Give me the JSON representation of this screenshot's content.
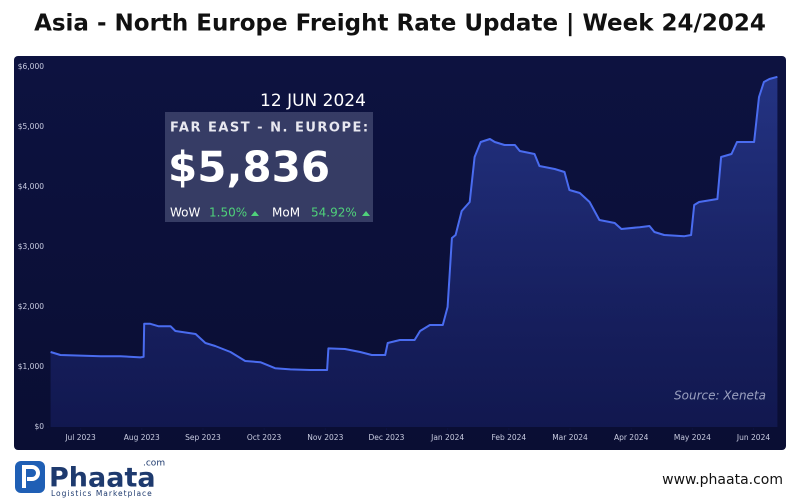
{
  "chart_data": {
    "type": "area",
    "title": "Asia - North Europe Freight Rate Update | Week 24/2024",
    "source": "Source: Xeneta",
    "callout": {
      "date": "12 JUN 2024",
      "route": "FAR EAST - N. EUROPE:",
      "rate": "$5,836",
      "wow_label": "WoW",
      "wow": "1.50%",
      "mom_label": "MoM",
      "mom": "54.92%"
    },
    "x": [
      -0.49,
      -0.33,
      0.33,
      0.65,
      0.98,
      1.03,
      1.04,
      1.14,
      1.27,
      1.47,
      1.55,
      1.88,
      2.04,
      2.2,
      2.45,
      2.69,
      2.94,
      3.18,
      3.43,
      3.75,
      4.03,
      4.05,
      4.32,
      4.57,
      4.76,
      4.98,
      5.02,
      5.22,
      5.46,
      5.55,
      5.71,
      5.92,
      6.0,
      6.07,
      6.13,
      6.23,
      6.36,
      6.44,
      6.54,
      6.69,
      6.77,
      6.93,
      7.1,
      7.18,
      7.42,
      7.5,
      7.75,
      7.91,
      7.99,
      8.16,
      8.32,
      8.48,
      8.73,
      8.84,
      9.14,
      9.3,
      9.38,
      9.54,
      9.87,
      9.98,
      10.03,
      10.11,
      10.41,
      10.47,
      10.64,
      10.73,
      11.01,
      11.09,
      11.17,
      11.26,
      11.39
    ],
    "series": [
      {
        "name": "Far East - N. Europe",
        "color": "#4a6cf0",
        "values": [
          1250,
          1200,
          1180,
          1180,
          1160,
          1170,
          1720,
          1720,
          1680,
          1680,
          1600,
          1550,
          1400,
          1350,
          1250,
          1100,
          1080,
          980,
          960,
          950,
          950,
          1310,
          1300,
          1250,
          1200,
          1200,
          1400,
          1450,
          1450,
          1600,
          1700,
          1700,
          2000,
          3150,
          3200,
          3600,
          3750,
          4500,
          4750,
          4800,
          4750,
          4700,
          4700,
          4600,
          4550,
          4350,
          4300,
          4250,
          3950,
          3900,
          3750,
          3450,
          3400,
          3300,
          3330,
          3350,
          3250,
          3200,
          3180,
          3200,
          3700,
          3750,
          3800,
          4500,
          4550,
          4750,
          4750,
          5500,
          5750,
          5800,
          5836
        ]
      }
    ],
    "xlim": [
      -0.5,
      11.4
    ],
    "xticks": [
      {
        "value": 0,
        "label": "Jul 2023"
      },
      {
        "value": 1,
        "label": "Aug 2023"
      },
      {
        "value": 2,
        "label": "Sep 2023"
      },
      {
        "value": 3,
        "label": "Oct 2023"
      },
      {
        "value": 4,
        "label": "Nov 2023"
      },
      {
        "value": 5,
        "label": "Dec 2023"
      },
      {
        "value": 6,
        "label": "Jan 2024"
      },
      {
        "value": 7,
        "label": "Feb 2024"
      },
      {
        "value": 8,
        "label": "Mar 2024"
      },
      {
        "value": 9,
        "label": "Apr 2024"
      },
      {
        "value": 10,
        "label": "May 2024"
      },
      {
        "value": 11,
        "label": "Jun 2024"
      }
    ],
    "ylim": [
      0,
      6000
    ],
    "yticks": [
      {
        "value": 0,
        "label": "$0"
      },
      {
        "value": 1000,
        "label": "$1,000"
      },
      {
        "value": 2000,
        "label": "$2,000"
      },
      {
        "value": 3000,
        "label": "$3,000"
      },
      {
        "value": 4000,
        "label": "$4,000"
      },
      {
        "value": 5000,
        "label": "$5,000"
      },
      {
        "value": 6000,
        "label": "$6,000"
      }
    ]
  },
  "footer": {
    "brand": "Phaata",
    "brand_suffix": ".com",
    "tagline": "Logistics Marketplace",
    "website": "www.phaata.com"
  }
}
